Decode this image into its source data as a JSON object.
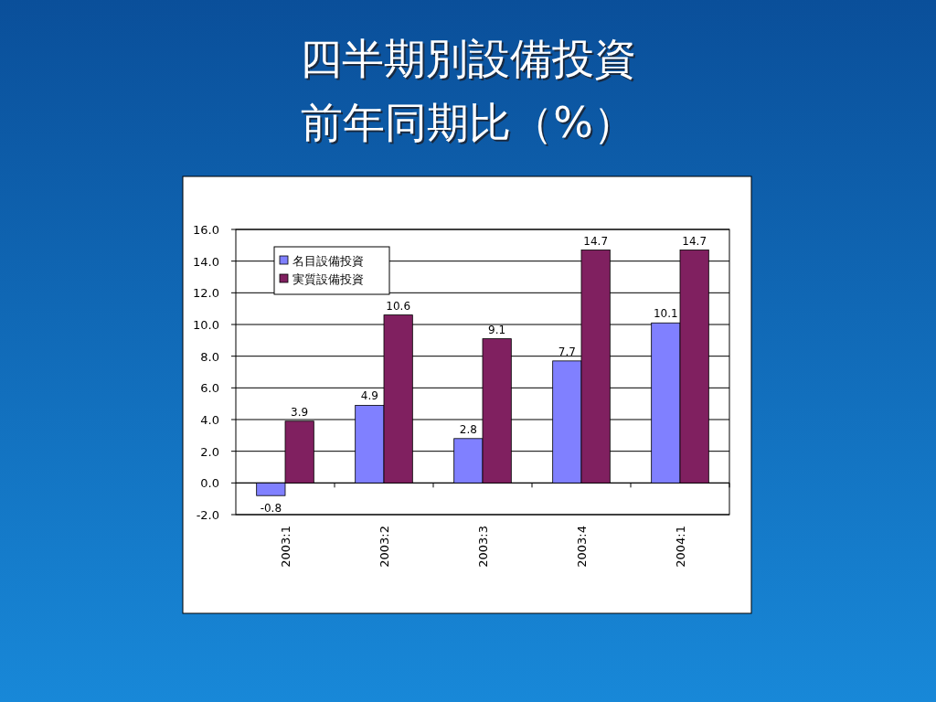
{
  "chart_data": {
    "type": "bar",
    "title": "四半期別設備投資",
    "subtitle": "前年同期比（%）",
    "categories": [
      "2003:1",
      "2003:2",
      "2003:3",
      "2003:4",
      "2004:1"
    ],
    "series": [
      {
        "name": "名目設備投資",
        "color": "#8080ff",
        "values": [
          -0.8,
          4.9,
          2.8,
          7.7,
          10.1
        ]
      },
      {
        "name": "実質設備投資",
        "color": "#802060",
        "values": [
          3.9,
          10.6,
          9.1,
          14.7,
          14.7
        ]
      }
    ],
    "ylim": [
      -2,
      16
    ],
    "yticks": [
      {
        "value": -2,
        "label": "-2.0"
      },
      {
        "value": 0,
        "label": "0.0"
      },
      {
        "value": 2,
        "label": "2.0"
      },
      {
        "value": 4,
        "label": "4.0"
      },
      {
        "value": 6,
        "label": "6.0"
      },
      {
        "value": 8,
        "label": "8.0"
      },
      {
        "value": 10,
        "label": "10.0"
      },
      {
        "value": 12,
        "label": "12.0"
      },
      {
        "value": 14,
        "label": "14.0"
      },
      {
        "value": 16,
        "label": "16.0"
      }
    ],
    "grid": "y",
    "legend": "top left",
    "data_labels": true
  }
}
